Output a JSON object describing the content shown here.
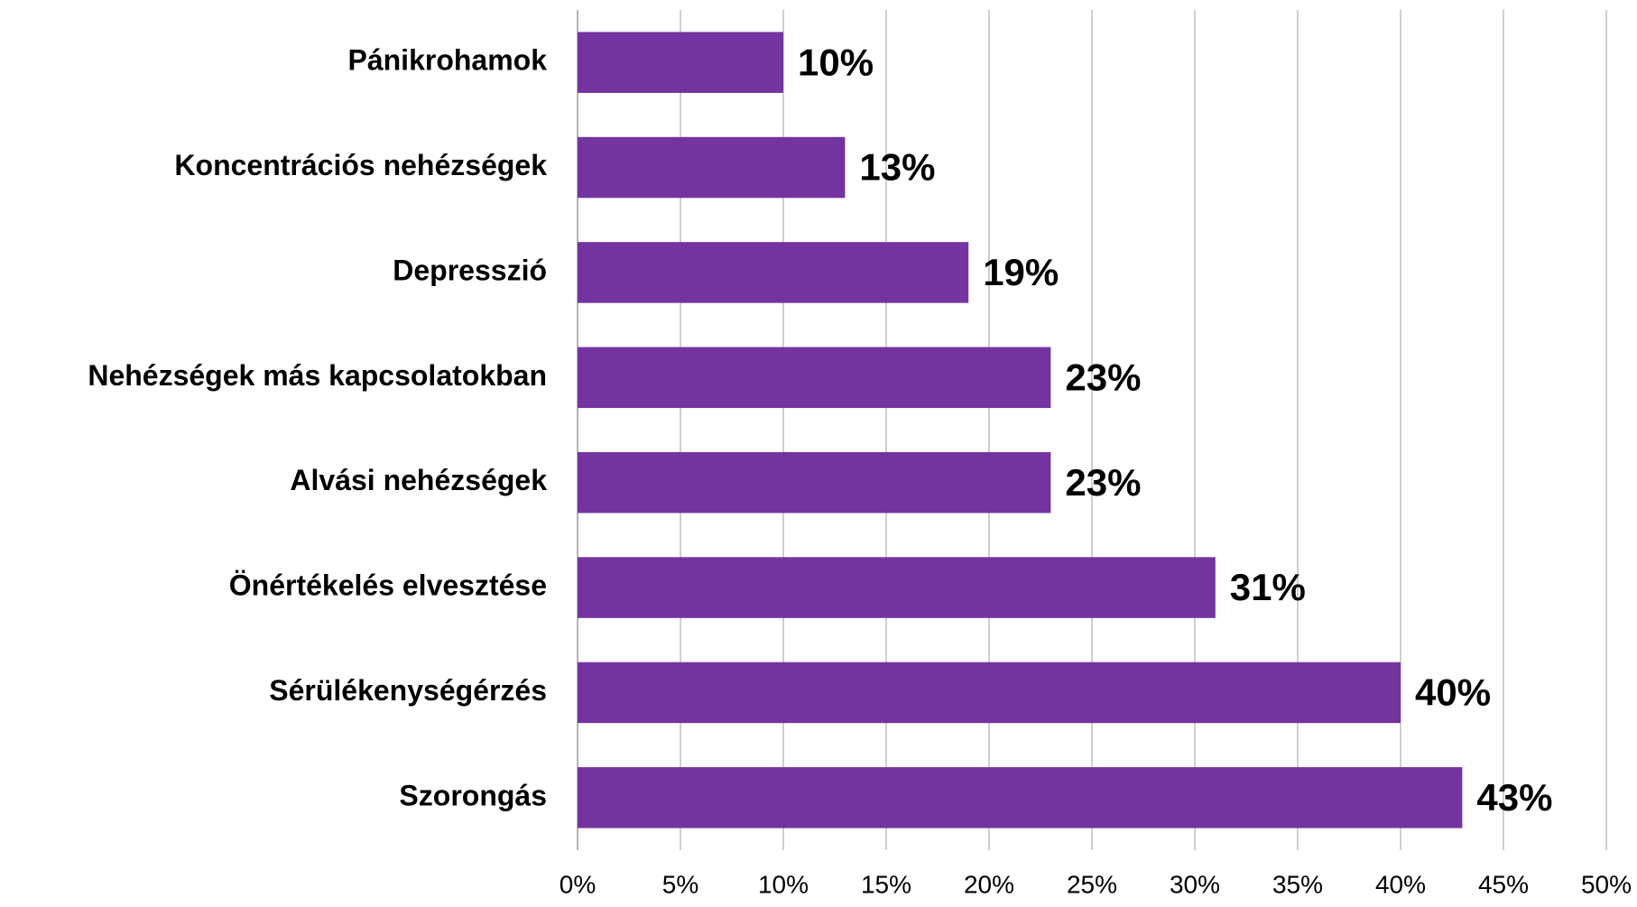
{
  "chart_data": {
    "type": "bar",
    "orientation": "horizontal",
    "categories": [
      "Pánikrohamok",
      "Koncentrációs nehézségek",
      "Depresszió",
      "Nehézségek más kapcsolatokban",
      "Alvási nehézségek",
      "Önértékelés elvesztése",
      "Sérülékenységérzés",
      "Szorongás"
    ],
    "values": [
      10,
      13,
      19,
      23,
      23,
      31,
      40,
      43
    ],
    "value_labels": [
      "10%",
      "13%",
      "19%",
      "23%",
      "23%",
      "31%",
      "40%",
      "43%"
    ],
    "color": "#7434a0",
    "xlim": [
      0,
      50
    ],
    "xticks": [
      {
        "value": 0,
        "label": "0%"
      },
      {
        "value": 5,
        "label": "5%"
      },
      {
        "value": 10,
        "label": "10%"
      },
      {
        "value": 15,
        "label": "15%"
      },
      {
        "value": 20,
        "label": "20%"
      },
      {
        "value": 25,
        "label": "25%"
      },
      {
        "value": 30,
        "label": "30%"
      },
      {
        "value": 35,
        "label": "35%"
      },
      {
        "value": 40,
        "label": "40%"
      },
      {
        "value": 45,
        "label": "45%"
      },
      {
        "value": 50,
        "label": "50%"
      }
    ],
    "grid": true
  }
}
